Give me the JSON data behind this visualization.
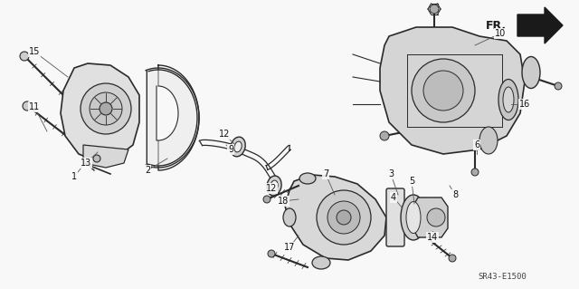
{
  "diagram_code": "SR43-E1500",
  "bg_color": "#f5f5f5",
  "figsize": [
    6.4,
    3.19
  ],
  "dpi": 100,
  "image_data": ""
}
